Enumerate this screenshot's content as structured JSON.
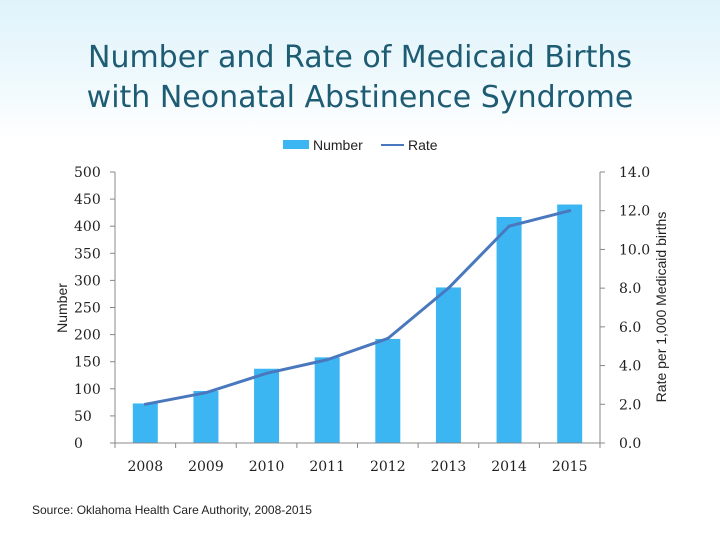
{
  "title_line1": "Number and Rate of Medicaid Births",
  "title_line2": "with Neonatal Abstinence Syndrome",
  "source": "Source: Oklahoma Health Care Authority, 2008-2015",
  "colors": {
    "bar": "#3bb6f2",
    "line": "#4a78be",
    "axis": "#888888",
    "title": "#1e5c74"
  },
  "chart_data": {
    "type": "bar",
    "categories": [
      "2008",
      "2009",
      "2010",
      "2011",
      "2012",
      "2013",
      "2014",
      "2015"
    ],
    "series": [
      {
        "name": "Number",
        "type": "bar",
        "axis": "left",
        "values": [
          73,
          96,
          137,
          158,
          192,
          287,
          417,
          440
        ]
      },
      {
        "name": "Rate",
        "type": "line",
        "axis": "right",
        "values": [
          2.0,
          2.6,
          3.6,
          4.3,
          5.4,
          8.0,
          11.2,
          12.0
        ]
      }
    ],
    "ylabel": "Number",
    "y2label": "Rate per 1,000 Medicaid births",
    "ylim": [
      0,
      500
    ],
    "y2lim": [
      0,
      14
    ],
    "yticks": [
      "0",
      "50",
      "100",
      "150",
      "200",
      "250",
      "300",
      "350",
      "400",
      "450",
      "500"
    ],
    "y2ticks": [
      "0.0",
      "2.0",
      "4.0",
      "6.0",
      "8.0",
      "10.0",
      "12.0",
      "14.0"
    ],
    "legend_position": "top-center",
    "grid": false
  }
}
